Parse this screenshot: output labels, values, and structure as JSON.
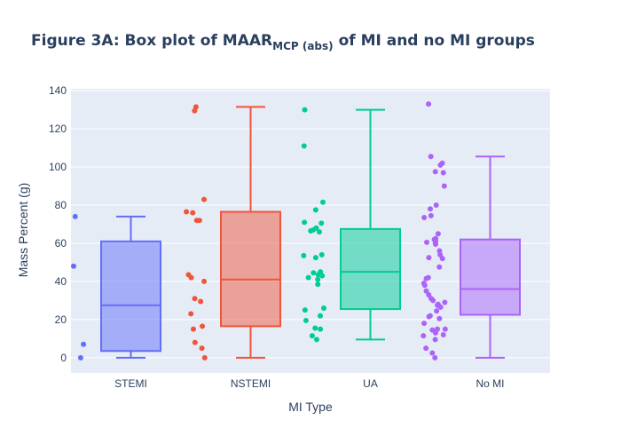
{
  "chart_data": {
    "type": "box",
    "title": {
      "prefix": "Figure 3A: Box plot of MAAR",
      "subscript": "MCP (abs)",
      "suffix": " of MI and no MI groups"
    },
    "xlabel": "MI Type",
    "ylabel": "Mass Percent (g)",
    "ylim": [
      -8,
      141
    ],
    "yticks": [
      0,
      20,
      40,
      60,
      80,
      100,
      120,
      140
    ],
    "grid": true,
    "legend": "none",
    "categories": [
      "STEMI",
      "NSTEMI",
      "UA",
      "No MI"
    ],
    "series": [
      {
        "category": "STEMI",
        "color": "#636efa",
        "stats": {
          "min": 0,
          "q1": 3.5,
          "median": 27.5,
          "q3": 61,
          "max": 74
        },
        "points": [
          74,
          48,
          7,
          0
        ]
      },
      {
        "category": "NSTEMI",
        "color": "#ef553b",
        "stats": {
          "min": 0,
          "q1": 16.5,
          "median": 41,
          "q3": 76.5,
          "max": 131.5
        },
        "points": [
          131.5,
          129.5,
          83,
          76.5,
          76,
          72,
          72,
          43.5,
          42,
          40,
          31,
          29.5,
          23,
          16.5,
          15,
          8,
          5,
          0
        ]
      },
      {
        "category": "UA",
        "color": "#00cc96",
        "stats": {
          "min": 9.5,
          "q1": 25.5,
          "median": 45,
          "q3": 67.5,
          "max": 130
        },
        "points": [
          130,
          111,
          81.5,
          77.5,
          71,
          70.5,
          68,
          67,
          66.5,
          66,
          54,
          53.5,
          52.5,
          45,
          44.5,
          43.5,
          43,
          42,
          41,
          38.5,
          26,
          25,
          22,
          19.5,
          15.5,
          15,
          11.5,
          9.5
        ]
      },
      {
        "category": "No MI",
        "color": "#ab63fa",
        "stats": {
          "min": 0,
          "q1": 22.5,
          "median": 36,
          "q3": 62,
          "max": 105.5
        },
        "points": [
          133,
          105.5,
          102,
          101,
          97.5,
          97,
          90,
          80,
          78,
          74.5,
          73.5,
          65,
          62.5,
          62,
          61,
          60.5,
          60,
          59.5,
          56,
          54,
          52.5,
          52,
          47.5,
          42,
          41.5,
          39,
          38,
          35,
          33,
          31,
          30,
          29,
          28,
          27.5,
          26.5,
          24.5,
          22,
          21.5,
          20.5,
          18,
          15,
          15,
          14.5,
          13,
          12,
          11.5,
          9.5,
          5,
          2.5,
          0
        ]
      }
    ]
  }
}
